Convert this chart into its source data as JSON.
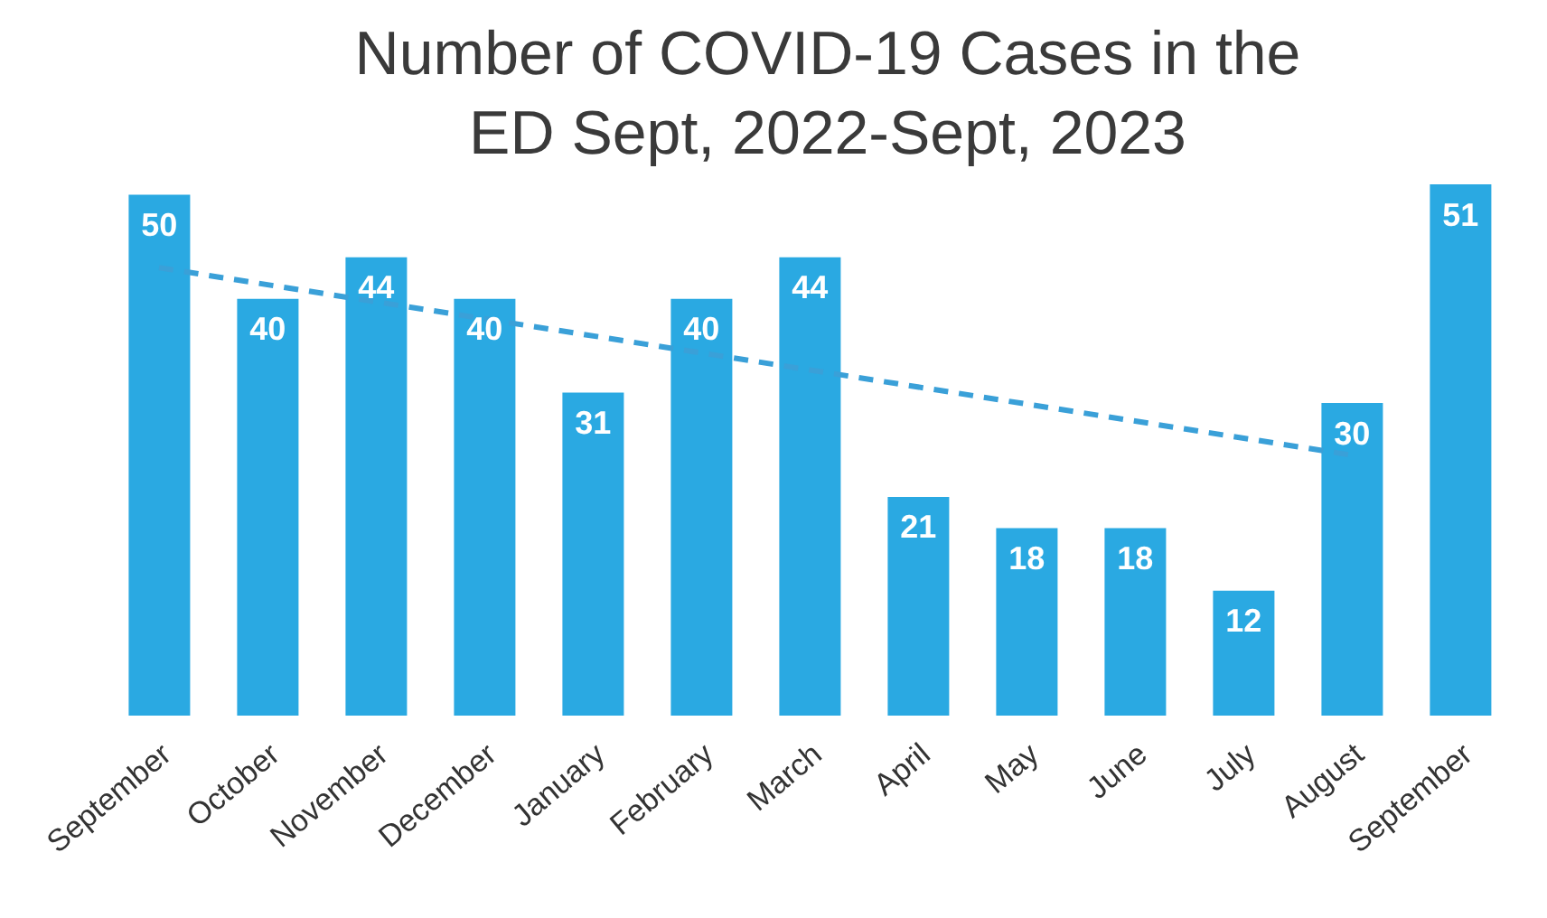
{
  "chart_data": {
    "type": "bar",
    "title": "Number of COVID-19 Cases in the ED Sept, 2022-Sept, 2023",
    "categories": [
      "September",
      "October",
      "November",
      "December",
      "January",
      "February",
      "March",
      "April",
      "May",
      "June",
      "July",
      "August",
      "September"
    ],
    "series": [
      {
        "color": "#2aa9e2",
        "values": [
          50,
          40,
          44,
          40,
          31,
          40,
          44,
          21,
          18,
          18,
          12,
          30,
          51
        ],
        "value_labels": [
          "50",
          "40",
          "44",
          "40",
          "31",
          "40",
          "44",
          "21",
          "18",
          "18",
          "12",
          "30",
          "51"
        ]
      },
      {
        "type": "line",
        "color": "#3aa0d8",
        "line_style": "dashed",
        "values": [
          43,
          null,
          null,
          null,
          null,
          null,
          null,
          null,
          null,
          null,
          null,
          25,
          null
        ]
      }
    ]
  }
}
